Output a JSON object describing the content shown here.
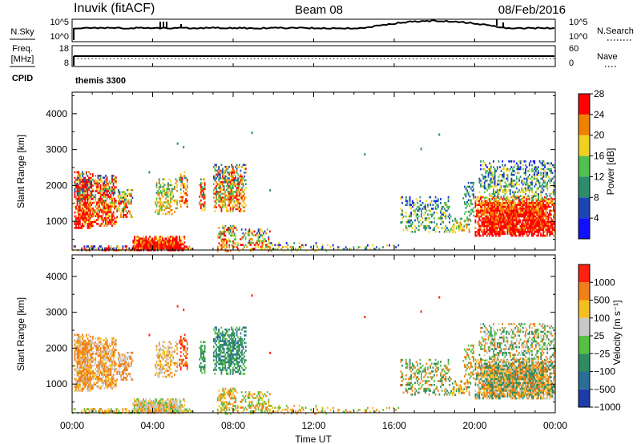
{
  "header": {
    "title": "Inuvik (fitACF)",
    "beam": "Beam 08",
    "date": "08/Feb/2016"
  },
  "status_panels": {
    "nsky_label": "N.Sky",
    "nsearch_label": "N.Search",
    "freq_label_top": "Freq.",
    "freq_label_bottom": "[MHz]",
    "nave_label": "Nave",
    "cpid_label": "CPID",
    "cpid_value": "themis 3300",
    "noise_left_ticks": [
      "10^5",
      "10^0"
    ],
    "noise_right_ticks": [
      "10^5",
      "10^0"
    ],
    "freq_left_ticks": [
      "18",
      "8"
    ],
    "freq_right_ticks": [
      "60",
      "0"
    ]
  },
  "chart_data": [
    {
      "type": "heatmap",
      "name": "power",
      "ylabel": "Slant Range [km]",
      "yticks": [
        "1000",
        "2000",
        "3000",
        "4000"
      ],
      "ylim": [
        200,
        4600
      ],
      "colorbar_label": "Power [dB]",
      "colorbar_ticks": [
        "4",
        "8",
        "12",
        "16",
        "20",
        "24",
        "28"
      ],
      "colors": [
        "#1010ff",
        "#1c46b4",
        "#2c8c6c",
        "#50c050",
        "#f0d020",
        "#f08000",
        "#ff0000"
      ]
    },
    {
      "type": "heatmap",
      "name": "velocity",
      "ylabel": "Slant Range [km]",
      "yticks": [
        "1000",
        "2000",
        "3000",
        "4000"
      ],
      "ylim": [
        200,
        4600
      ],
      "colorbar_label": "Velocity [m s⁻¹]",
      "colorbar_ticks": [
        "1000",
        "500",
        "100",
        "25",
        "−25",
        "−100",
        "−500",
        "−1000"
      ],
      "colors": [
        "#1c3caa",
        "#2a6e98",
        "#2e8c5e",
        "#58c040",
        "#c8c8c8",
        "#f4c020",
        "#f08018",
        "#ff2010"
      ]
    }
  ],
  "xaxis": {
    "label": "Time UT",
    "ticks": [
      "00:00",
      "04:00",
      "08:00",
      "12:00",
      "16:00",
      "20:00",
      "00:00"
    ]
  }
}
